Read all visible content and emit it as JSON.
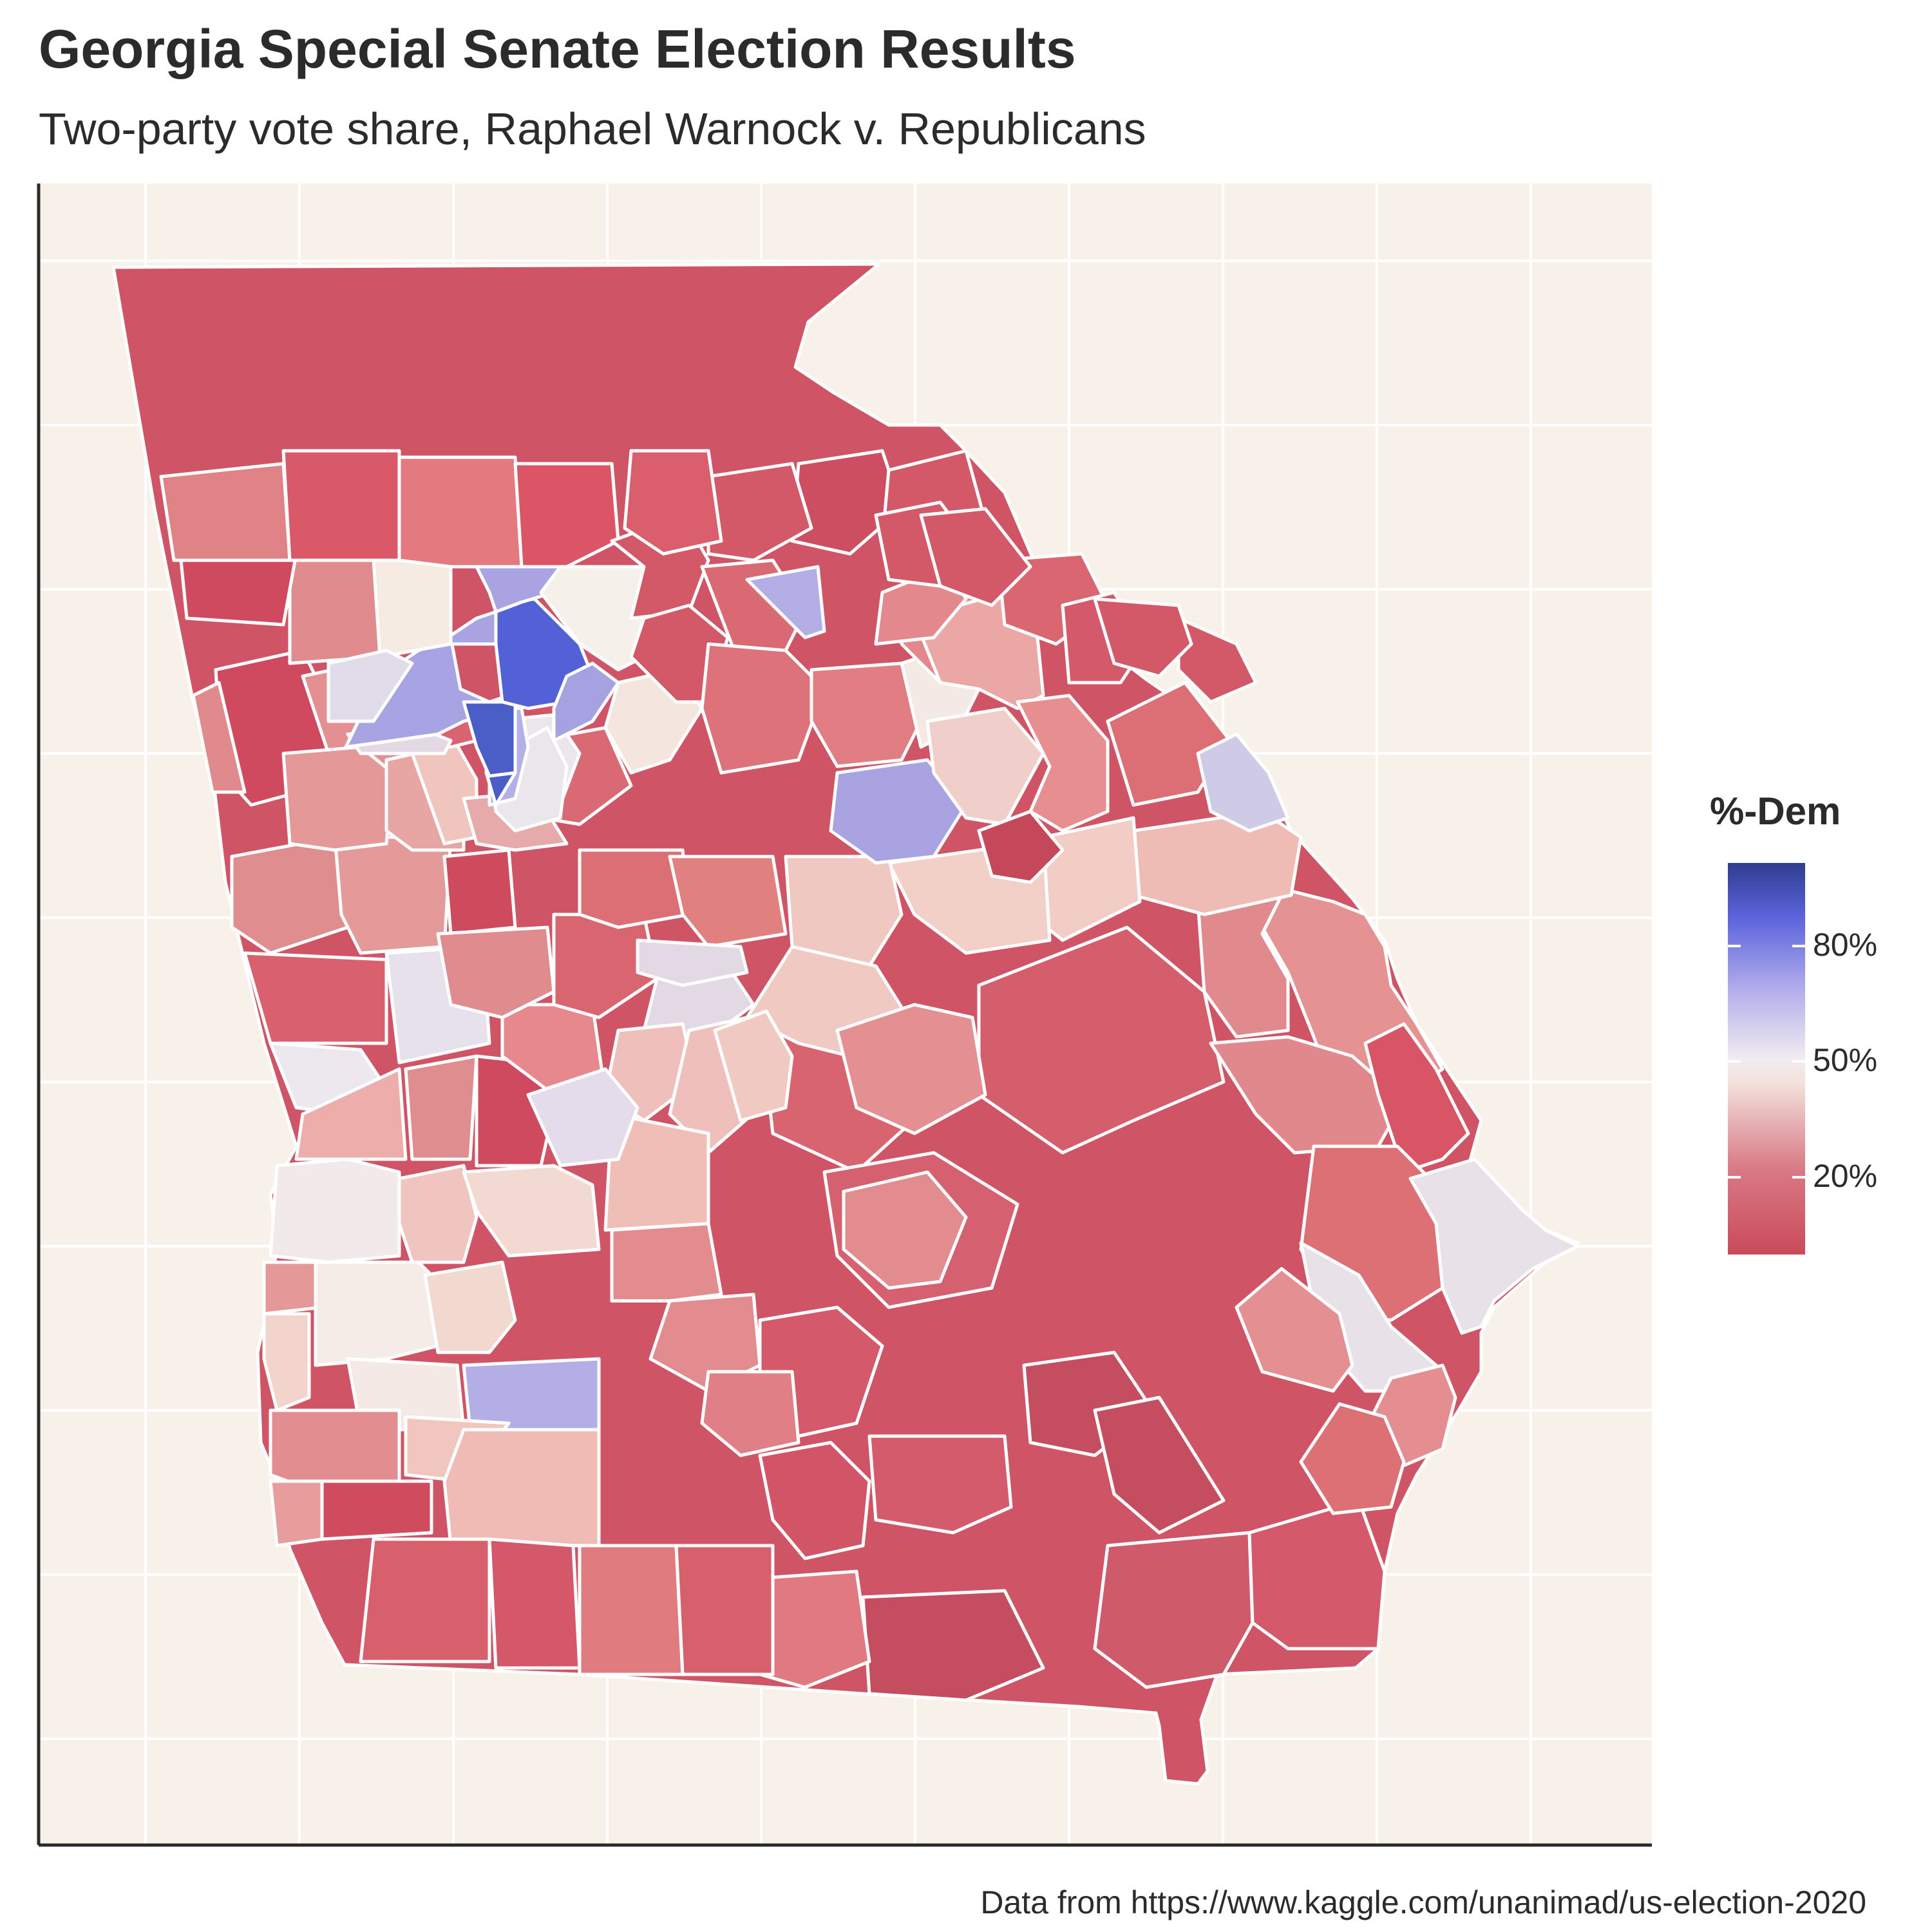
{
  "title": "Georgia Special Senate Election Results",
  "subtitle": "Two-party vote share, Raphael Warnock v. Republicans",
  "caption": "Data from https://www.kaggle.com/unanimad/us-election-2020",
  "legend": {
    "title": "%-Dem",
    "ticks": [
      {
        "label": "80%",
        "value": 80
      },
      {
        "label": "50%",
        "value": 50
      },
      {
        "label": "20%",
        "value": 20
      }
    ],
    "range": [
      13,
      96
    ],
    "colors": {
      "low": "#c94a5b",
      "mid": "#f5efe6",
      "high": "#2e3d8f"
    }
  },
  "colors": {
    "panel_background": "#f8f1e9",
    "grid": "#ffffff",
    "county_border": "#ffffff",
    "text": "#2b2b2b"
  },
  "map": {
    "state": "Georgia",
    "measure": "%-Dem"
  }
}
